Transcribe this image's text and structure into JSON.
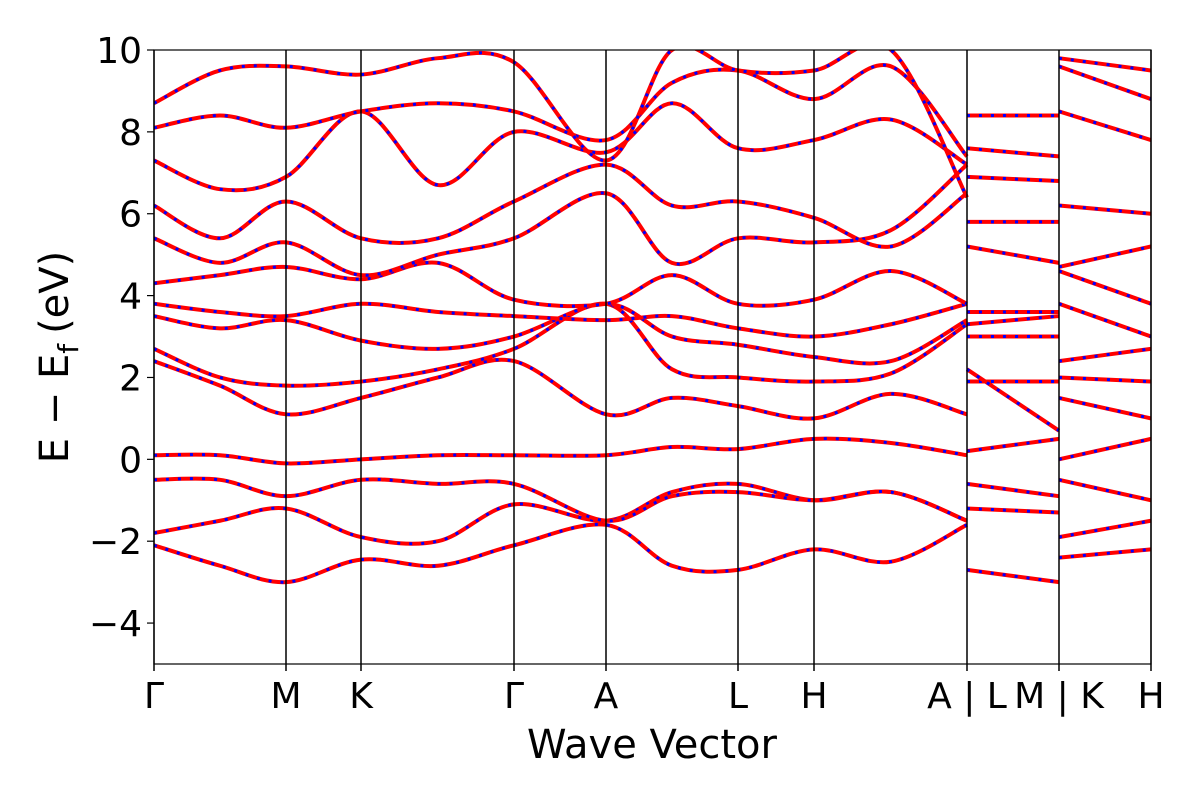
{
  "chart_data": {
    "type": "line",
    "xlabel": "Wave Vector",
    "ylabel": {
      "main": "E − E",
      "sub": "f",
      "unit": "(eV)"
    },
    "x": [
      0,
      0.66,
      1.32,
      2.07,
      2.84,
      3.6,
      4.52,
      5.18,
      5.84,
      6.6,
      7.37,
      8.13,
      8.13,
      8.13,
      9.05,
      9.05,
      9.05,
      9.97
    ],
    "xlim": [
      0,
      9.97
    ],
    "xticks": [
      {
        "value": 0,
        "label": "Γ"
      },
      {
        "value": 1.32,
        "label": "M"
      },
      {
        "value": 2.07,
        "label": "K"
      },
      {
        "value": 3.6,
        "label": "Γ"
      },
      {
        "value": 4.52,
        "label": "A"
      },
      {
        "value": 5.84,
        "label": "L"
      },
      {
        "value": 6.6,
        "label": "H"
      },
      {
        "value": 8.13,
        "label": "A | L"
      },
      {
        "value": 9.05,
        "label": "M | K"
      },
      {
        "value": 9.97,
        "label": "H"
      }
    ],
    "ylim": [
      -5,
      10
    ],
    "yticks": [
      {
        "value": -4,
        "label": "−4"
      },
      {
        "value": -2,
        "label": "−2"
      },
      0,
      2,
      4,
      6,
      8,
      10
    ],
    "overlay_color": "#0000ff",
    "series": [
      {
        "color": "#ff0000",
        "values": [
          -2.1,
          -2.6,
          -3.0,
          -2.45,
          -2.6,
          -2.1,
          -1.6,
          -2.6,
          -2.7,
          -2.2,
          -2.5,
          -1.6,
          null,
          -2.7,
          -3.0,
          null,
          -1.9,
          -1.5
        ]
      },
      {
        "color": "#ff0000",
        "values": [
          -1.8,
          -1.5,
          -1.2,
          -1.9,
          -2.0,
          -1.1,
          -1.5,
          -0.8,
          -0.6,
          -1.0,
          -0.8,
          -1.5,
          null,
          -1.2,
          -1.3,
          null,
          -2.4,
          -2.2
        ]
      },
      {
        "color": "#ff0000",
        "values": [
          -0.5,
          -0.5,
          -0.9,
          -0.5,
          -0.6,
          -0.6,
          -1.5,
          -0.9,
          -0.8,
          -1.0,
          -0.8,
          -1.5,
          null,
          -0.6,
          -0.9,
          null,
          -0.5,
          -1.0
        ]
      },
      {
        "color": "#ff0000",
        "values": [
          0.1,
          0.1,
          -0.1,
          0.0,
          0.1,
          0.1,
          0.1,
          0.3,
          0.25,
          0.5,
          0.4,
          0.1,
          null,
          0.2,
          0.5,
          null,
          0.0,
          0.5
        ]
      },
      {
        "color": "#ff0000",
        "values": [
          2.4,
          1.8,
          1.1,
          1.5,
          2.0,
          2.4,
          1.1,
          1.5,
          1.3,
          1.0,
          1.6,
          1.1,
          null,
          1.9,
          1.9,
          null,
          1.5,
          1.0
        ]
      },
      {
        "color": "#ff0000",
        "values": [
          2.7,
          2.0,
          1.8,
          1.9,
          2.2,
          2.7,
          3.8,
          2.2,
          2.0,
          1.9,
          2.1,
          3.3,
          null,
          2.2,
          0.7,
          null,
          2.0,
          1.9
        ]
      },
      {
        "color": "#ff0000",
        "values": [
          3.5,
          3.2,
          3.4,
          2.9,
          2.7,
          3.0,
          3.8,
          3.0,
          2.8,
          2.5,
          2.4,
          3.4,
          null,
          3.0,
          3.0,
          null,
          2.4,
          2.7
        ]
      },
      {
        "color": "#ff0000",
        "values": [
          3.8,
          3.6,
          3.5,
          3.8,
          3.6,
          3.5,
          3.4,
          3.5,
          3.2,
          3.0,
          3.3,
          3.8,
          null,
          3.3,
          3.5,
          null,
          3.8,
          3.0
        ]
      },
      {
        "color": "#ff0000",
        "values": [
          4.3,
          4.5,
          4.7,
          4.4,
          4.8,
          3.9,
          3.8,
          4.5,
          3.8,
          3.9,
          4.6,
          3.8,
          null,
          3.6,
          3.6,
          null,
          4.6,
          3.8
        ]
      },
      {
        "color": "#ff0000",
        "values": [
          5.4,
          4.8,
          5.3,
          4.5,
          5.0,
          5.4,
          6.5,
          4.8,
          5.4,
          5.3,
          5.6,
          7.2,
          null,
          5.2,
          4.8,
          null,
          4.7,
          5.2
        ]
      },
      {
        "color": "#ff0000",
        "values": [
          6.2,
          5.4,
          6.3,
          5.4,
          5.4,
          6.3,
          7.2,
          6.2,
          6.3,
          5.9,
          5.2,
          6.5,
          null,
          5.8,
          5.8,
          null,
          6.2,
          6.0
        ]
      },
      {
        "color": "#ff0000",
        "values": [
          7.3,
          6.6,
          6.9,
          8.5,
          6.7,
          8.0,
          7.5,
          8.7,
          7.6,
          7.8,
          8.3,
          7.2,
          null,
          6.9,
          6.8,
          null,
          8.5,
          7.8
        ]
      },
      {
        "color": "#ff0000",
        "values": [
          8.1,
          8.4,
          8.1,
          8.5,
          8.7,
          8.5,
          7.8,
          9.2,
          9.5,
          8.8,
          9.6,
          7.4,
          null,
          7.6,
          7.4,
          null,
          9.6,
          8.8
        ]
      },
      {
        "color": "#ff0000",
        "values": [
          8.7,
          9.5,
          9.6,
          9.4,
          9.8,
          9.7,
          7.3,
          10.0,
          9.5,
          9.5,
          10.0,
          6.4,
          null,
          8.4,
          8.4,
          null,
          9.8,
          9.5
        ]
      }
    ]
  }
}
